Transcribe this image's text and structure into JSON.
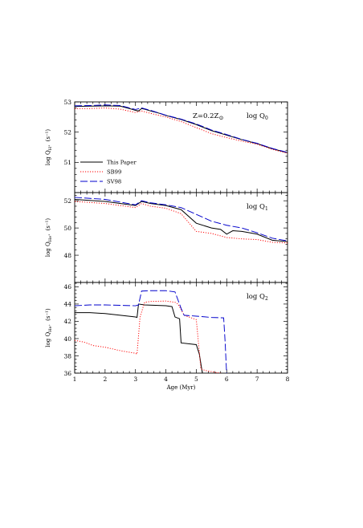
{
  "chart_data": [
    {
      "type": "line",
      "panel_label": "log Q",
      "panel_label_sub": "0",
      "annotation": "Z=0.2Z",
      "annotation_symbol": "⊙",
      "ylabel_main": "log Q",
      "ylabel_sub": "H°",
      "ylabel_unit": "(s⁻¹)",
      "xlim": [
        1,
        8
      ],
      "ylim": [
        50,
        53
      ],
      "yticks": [
        50,
        51,
        52,
        53
      ],
      "ytick_labels": [
        "",
        "51",
        "52",
        "53"
      ],
      "legend": {
        "position": "bottom-left",
        "entries": [
          {
            "label": "This Paper",
            "series": "this_paper"
          },
          {
            "label": "SB99",
            "series": "sb99"
          },
          {
            "label": "SV98",
            "series": "sv98"
          }
        ]
      },
      "series": [
        {
          "key": "this_paper",
          "color": "#000000",
          "dash": "",
          "points": [
            [
              1,
              52.85
            ],
            [
              1.5,
              52.86
            ],
            [
              2,
              52.87
            ],
            [
              2.5,
              52.86
            ],
            [
              2.8,
              52.78
            ],
            [
              3.0,
              52.72
            ],
            [
              3.1,
              52.7
            ],
            [
              3.2,
              52.78
            ],
            [
              3.3,
              52.76
            ],
            [
              3.5,
              52.7
            ],
            [
              3.8,
              52.62
            ],
            [
              4.0,
              52.55
            ],
            [
              4.5,
              52.42
            ],
            [
              5.0,
              52.25
            ],
            [
              5.5,
              52.05
            ],
            [
              6.0,
              51.9
            ],
            [
              6.5,
              51.75
            ],
            [
              7.0,
              51.62
            ],
            [
              7.5,
              51.45
            ],
            [
              8.0,
              51.32
            ]
          ]
        },
        {
          "key": "sb99",
          "color": "#ff0000",
          "dash": "1.2,1.8",
          "points": [
            [
              1,
              52.78
            ],
            [
              1.5,
              52.78
            ],
            [
              2,
              52.8
            ],
            [
              2.5,
              52.76
            ],
            [
              3.0,
              52.65
            ],
            [
              3.2,
              52.7
            ],
            [
              3.5,
              52.62
            ],
            [
              4.0,
              52.5
            ],
            [
              4.5,
              52.35
            ],
            [
              5.0,
              52.15
            ],
            [
              5.5,
              51.95
            ],
            [
              6.0,
              51.82
            ],
            [
              6.5,
              51.7
            ],
            [
              7.0,
              51.6
            ],
            [
              7.5,
              51.43
            ],
            [
              8.0,
              51.3
            ]
          ]
        },
        {
          "key": "sv98",
          "color": "#0000cc",
          "dash": "9,3",
          "points": [
            [
              1,
              52.87
            ],
            [
              1.5,
              52.88
            ],
            [
              2,
              52.9
            ],
            [
              2.5,
              52.88
            ],
            [
              3.0,
              52.75
            ],
            [
              3.2,
              52.8
            ],
            [
              3.5,
              52.72
            ],
            [
              4.0,
              52.56
            ],
            [
              4.5,
              52.43
            ],
            [
              5.0,
              52.27
            ],
            [
              5.5,
              52.07
            ],
            [
              6.0,
              51.92
            ],
            [
              6.5,
              51.76
            ],
            [
              7.0,
              51.63
            ],
            [
              7.5,
              51.46
            ],
            [
              8.0,
              51.33
            ]
          ]
        }
      ]
    },
    {
      "type": "line",
      "panel_label": "log Q",
      "panel_label_sub": "1",
      "ylabel_main": "log Q",
      "ylabel_sub": "He°",
      "ylabel_unit": "(s⁻¹)",
      "xlim": [
        1,
        8
      ],
      "ylim": [
        46,
        52.6
      ],
      "yticks": [
        46,
        48,
        50,
        52
      ],
      "ytick_labels": [
        "",
        "48",
        "50",
        "52"
      ],
      "series": [
        {
          "key": "this_paper",
          "color": "#000000",
          "dash": "",
          "points": [
            [
              1,
              52.1
            ],
            [
              2,
              51.95
            ],
            [
              3.0,
              51.65
            ],
            [
              3.2,
              51.95
            ],
            [
              3.5,
              51.8
            ],
            [
              4.0,
              51.65
            ],
            [
              4.5,
              51.35
            ],
            [
              5.0,
              50.35
            ],
            [
              5.5,
              50.0
            ],
            [
              5.8,
              49.9
            ],
            [
              6.0,
              49.55
            ],
            [
              6.2,
              49.8
            ],
            [
              6.5,
              49.75
            ],
            [
              7.0,
              49.55
            ],
            [
              7.5,
              49.1
            ],
            [
              8.0,
              49.0
            ]
          ]
        },
        {
          "key": "sb99",
          "color": "#ff0000",
          "dash": "1.2,1.8",
          "points": [
            [
              1,
              51.95
            ],
            [
              2,
              51.8
            ],
            [
              3.0,
              51.5
            ],
            [
              3.2,
              51.8
            ],
            [
              3.5,
              51.6
            ],
            [
              4.0,
              51.45
            ],
            [
              4.5,
              51.05
            ],
            [
              5.0,
              49.75
            ],
            [
              5.5,
              49.6
            ],
            [
              6.0,
              49.3
            ],
            [
              6.5,
              49.2
            ],
            [
              7.0,
              49.15
            ],
            [
              7.5,
              48.95
            ],
            [
              8.0,
              48.9
            ]
          ]
        },
        {
          "key": "sv98",
          "color": "#0000cc",
          "dash": "9,3",
          "points": [
            [
              1,
              52.25
            ],
            [
              2,
              52.1
            ],
            [
              3.0,
              51.7
            ],
            [
              3.2,
              52.0
            ],
            [
              3.5,
              51.85
            ],
            [
              4.0,
              51.7
            ],
            [
              4.5,
              51.5
            ],
            [
              5.0,
              51.0
            ],
            [
              5.5,
              50.5
            ],
            [
              6.0,
              50.2
            ],
            [
              6.5,
              50.0
            ],
            [
              7.0,
              49.65
            ],
            [
              7.5,
              49.25
            ],
            [
              8.0,
              49.05
            ]
          ]
        }
      ]
    },
    {
      "type": "line",
      "panel_label": "log Q",
      "panel_label_sub": "2",
      "ylabel_main": "log Q",
      "ylabel_sub": "He⁺",
      "ylabel_unit": "(s⁻¹)",
      "xlabel": "Age (Myr)",
      "xlim": [
        1,
        8
      ],
      "xticks": [
        1,
        2,
        3,
        4,
        5,
        6,
        7,
        8
      ],
      "xtick_labels": [
        "1",
        "2",
        "3",
        "4",
        "5",
        "6",
        "7",
        "8"
      ],
      "ylim": [
        36,
        46.5
      ],
      "yticks": [
        36,
        38,
        40,
        42,
        44,
        46
      ],
      "ytick_labels": [
        "36",
        "38",
        "40",
        "42",
        "44",
        "46"
      ],
      "series": [
        {
          "key": "this_paper",
          "color": "#000000",
          "dash": "",
          "points": [
            [
              1,
              43.0
            ],
            [
              1.5,
              43.0
            ],
            [
              2,
              42.9
            ],
            [
              2.5,
              42.7
            ],
            [
              3.0,
              42.5
            ],
            [
              3.05,
              42.45
            ],
            [
              3.1,
              44.0
            ],
            [
              3.3,
              43.9
            ],
            [
              4.0,
              43.8
            ],
            [
              4.2,
              43.7
            ],
            [
              4.3,
              42.5
            ],
            [
              4.45,
              42.3
            ],
            [
              4.5,
              39.5
            ],
            [
              5.0,
              39.3
            ],
            [
              5.1,
              38.2
            ],
            [
              5.2,
              36.0
            ],
            [
              5.3,
              35.85
            ],
            [
              6.0,
              35.7
            ],
            [
              6.5,
              35.5
            ],
            [
              7.0,
              35.35
            ],
            [
              7.5,
              35.1
            ],
            [
              8.0,
              35.0
            ]
          ]
        },
        {
          "key": "sb99",
          "color": "#ff0000",
          "dash": "1.2,1.8",
          "points": [
            [
              1,
              39.8
            ],
            [
              1.3,
              39.6
            ],
            [
              1.6,
              39.2
            ],
            [
              2.0,
              39.0
            ],
            [
              2.5,
              38.6
            ],
            [
              3.0,
              38.3
            ],
            [
              3.05,
              38.2
            ],
            [
              3.15,
              42.5
            ],
            [
              3.3,
              44.2
            ],
            [
              3.5,
              44.3
            ],
            [
              4.0,
              44.35
            ],
            [
              4.3,
              44.2
            ],
            [
              4.4,
              44.0
            ],
            [
              4.6,
              42.7
            ],
            [
              5.0,
              42.2
            ],
            [
              5.15,
              36.5
            ],
            [
              5.3,
              36.3
            ],
            [
              6.0,
              35.85
            ],
            [
              6.5,
              35.5
            ],
            [
              7.0,
              35.3
            ],
            [
              7.5,
              35.1
            ],
            [
              8.0,
              35.0
            ]
          ]
        },
        {
          "key": "sv98",
          "color": "#0000cc",
          "dash": "9,3",
          "points": [
            [
              1,
              43.8
            ],
            [
              1.5,
              43.9
            ],
            [
              2,
              43.9
            ],
            [
              2.5,
              43.85
            ],
            [
              3.0,
              43.8
            ],
            [
              3.1,
              43.9
            ],
            [
              3.2,
              45.5
            ],
            [
              3.5,
              45.55
            ],
            [
              4.0,
              45.55
            ],
            [
              4.3,
              45.4
            ],
            [
              4.5,
              43.5
            ],
            [
              4.6,
              42.7
            ],
            [
              5.0,
              42.6
            ],
            [
              5.5,
              42.45
            ],
            [
              5.9,
              42.4
            ],
            [
              5.95,
              39.5
            ],
            [
              6.0,
              35.7
            ],
            [
              6.5,
              35.55
            ],
            [
              7.0,
              35.35
            ],
            [
              7.5,
              35.1
            ],
            [
              8.0,
              35.0
            ]
          ]
        }
      ]
    }
  ]
}
